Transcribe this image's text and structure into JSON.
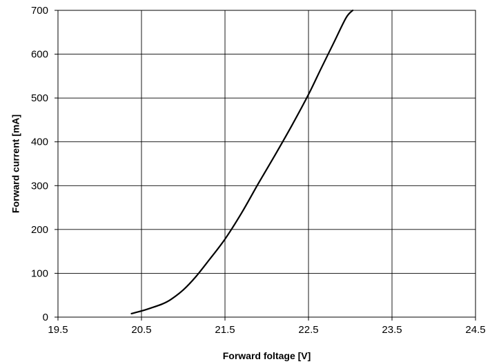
{
  "chart_data": {
    "type": "line",
    "title": "",
    "xlabel": "Forward foltage [V]",
    "ylabel": "Forward current [mA]",
    "xlim": [
      19.5,
      24.5
    ],
    "ylim": [
      0,
      700
    ],
    "x_ticks": [
      "19.5",
      "20.5",
      "21.5",
      "22.5",
      "23.5",
      "24.5"
    ],
    "y_ticks": [
      "0",
      "100",
      "200",
      "300",
      "400",
      "500",
      "600",
      "700"
    ],
    "grid": true,
    "legend": "none",
    "series": [
      {
        "color": "#000000",
        "x": [
          20.38,
          20.5,
          20.6,
          20.75,
          20.85,
          21.0,
          21.15,
          21.3,
          21.5,
          21.7,
          21.9,
          22.1,
          22.3,
          22.5,
          22.65,
          22.8,
          22.95,
          23.03
        ],
        "y": [
          8,
          14,
          20,
          30,
          40,
          62,
          92,
          128,
          178,
          238,
          305,
          370,
          437,
          508,
          567,
          625,
          683,
          700
        ]
      }
    ]
  }
}
